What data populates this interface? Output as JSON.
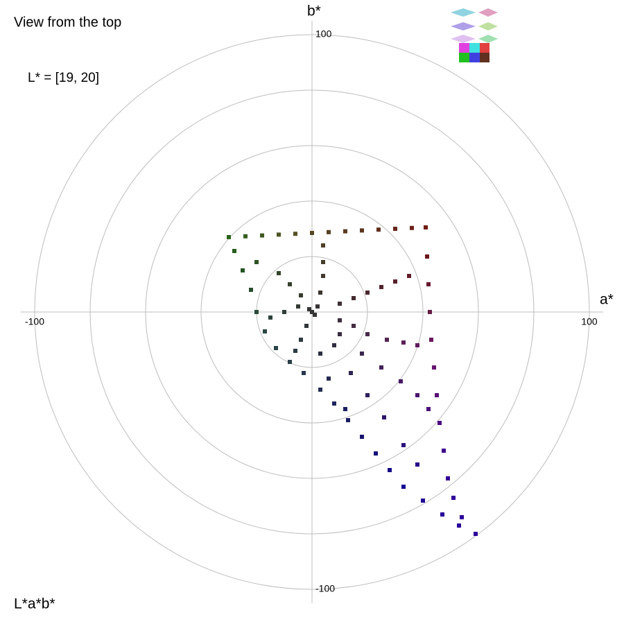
{
  "chart_data": {
    "type": "scatter",
    "title": "View from the top",
    "subtitle": "L* = [19, 20]",
    "footer": "L*a*b*",
    "x_label": "a*",
    "y_label": "b*",
    "xlim": [
      -105,
      105
    ],
    "ylim": [
      -105,
      105
    ],
    "xticks": [
      -100,
      100
    ],
    "yticks": [
      100,
      -100
    ],
    "rings": [
      20,
      40,
      60,
      80,
      100
    ],
    "grid": true,
    "x": [
      -30,
      -24,
      -18,
      -12,
      -6,
      0,
      6,
      12,
      18,
      24,
      30,
      36,
      41,
      41.5,
      42,
      42.5,
      43,
      44,
      45,
      46,
      47.5,
      49,
      51,
      54,
      59,
      -28,
      -25,
      -22,
      -20,
      -17,
      -13,
      -8,
      -3,
      3,
      8,
      13,
      18,
      23,
      28,
      33,
      40,
      47,
      53,
      10,
      15,
      20,
      25,
      30,
      35,
      3,
      4,
      4,
      4,
      -4,
      -8,
      -12,
      -20,
      -5,
      -10,
      -15,
      10,
      15,
      20,
      27,
      33,
      38,
      10,
      18,
      25,
      32,
      38,
      42,
      8,
      14,
      20,
      26,
      33,
      38,
      -2,
      -4,
      -6,
      3,
      6,
      12,
      18,
      0,
      1,
      -1,
      2
    ],
    "values": [
      27,
      27.3,
      27.6,
      27.9,
      28.2,
      28.5,
      28.8,
      29.1,
      29.4,
      29.7,
      30,
      30.3,
      30.5,
      20,
      10,
      0,
      -10,
      -20,
      -30,
      -40,
      -50,
      -60,
      -67,
      -74,
      -80,
      22,
      15,
      8,
      0,
      -7,
      -13,
      -18,
      -22,
      -28,
      -33,
      -39,
      -45,
      -51,
      -57,
      -63,
      -68,
      -73,
      -77,
      3,
      5,
      7,
      9,
      11,
      13,
      7,
      13,
      18,
      24,
      6,
      10,
      14,
      18,
      2,
      0,
      -2,
      -3,
      -5,
      -8,
      -10,
      -11,
      -12,
      -8,
      -15,
      -20,
      -25,
      -30,
      -35,
      -12,
      -22,
      -30,
      -38,
      -48,
      -55,
      -5,
      -10,
      -14,
      -15,
      -24,
      -35,
      -45,
      0,
      -1,
      1,
      2
    ]
  }
}
